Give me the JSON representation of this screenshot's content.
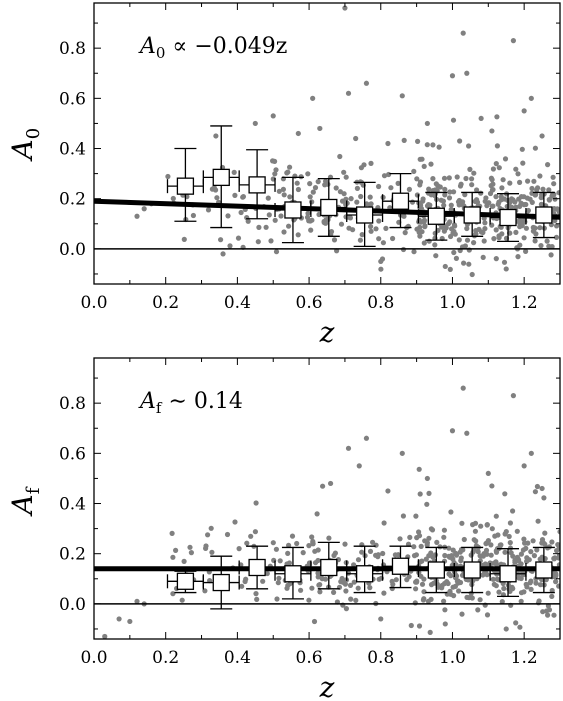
{
  "chart_data": [
    {
      "type": "scatter",
      "title": "",
      "xlabel": "z",
      "ylabel": "A",
      "ylabel_sub": "0",
      "annotation": {
        "var": "A",
        "sub": "0",
        "rest": " ∝ −0.049z"
      },
      "xlim": [
        0.0,
        1.3
      ],
      "ylim": [
        -0.14,
        0.98
      ],
      "xticks": [
        "0.0",
        "0.2",
        "0.4",
        "0.6",
        "0.8",
        "1.0",
        "1.2"
      ],
      "xtick_values": [
        0.0,
        0.2,
        0.4,
        0.6,
        0.8,
        1.0,
        1.2
      ],
      "yticks": [
        "0.0",
        "0.2",
        "0.4",
        "0.6",
        "0.8"
      ],
      "ytick_values": [
        0.0,
        0.2,
        0.4,
        0.6,
        0.8
      ],
      "fit_line": {
        "x": [
          0.0,
          1.3
        ],
        "y": [
          0.19,
          0.126
        ]
      },
      "zero_line": 0.0,
      "binned": [
        {
          "x": 0.255,
          "y": 0.25,
          "yerr_hi": 0.4,
          "yerr_lo": 0.11,
          "xerr": 0.05
        },
        {
          "x": 0.355,
          "y": 0.285,
          "yerr_hi": 0.49,
          "yerr_lo": 0.085,
          "xerr": 0.05
        },
        {
          "x": 0.455,
          "y": 0.255,
          "yerr_hi": 0.395,
          "yerr_lo": 0.12,
          "xerr": 0.05
        },
        {
          "x": 0.555,
          "y": 0.155,
          "yerr_hi": 0.285,
          "yerr_lo": 0.025,
          "xerr": 0.05
        },
        {
          "x": 0.655,
          "y": 0.165,
          "yerr_hi": 0.28,
          "yerr_lo": 0.05,
          "xerr": 0.05
        },
        {
          "x": 0.755,
          "y": 0.135,
          "yerr_hi": 0.265,
          "yerr_lo": 0.01,
          "xerr": 0.05
        },
        {
          "x": 0.855,
          "y": 0.19,
          "yerr_hi": 0.3,
          "yerr_lo": 0.085,
          "xerr": 0.05
        },
        {
          "x": 0.955,
          "y": 0.13,
          "yerr_hi": 0.225,
          "yerr_lo": 0.035,
          "xerr": 0.05
        },
        {
          "x": 1.055,
          "y": 0.135,
          "yerr_hi": 0.225,
          "yerr_lo": 0.05,
          "xerr": 0.05
        },
        {
          "x": 1.155,
          "y": 0.125,
          "yerr_hi": 0.22,
          "yerr_lo": 0.03,
          "xerr": 0.05
        },
        {
          "x": 1.255,
          "y": 0.135,
          "yerr_hi": 0.225,
          "yerr_lo": 0.045,
          "xerr": 0.05
        }
      ],
      "outliers": [
        {
          "x": 0.7,
          "y": 0.96
        },
        {
          "x": 1.03,
          "y": 0.86
        },
        {
          "x": 1.17,
          "y": 0.83
        },
        {
          "x": 1.0,
          "y": 0.69
        },
        {
          "x": 1.04,
          "y": 0.7
        },
        {
          "x": 0.76,
          "y": 0.66
        },
        {
          "x": 0.71,
          "y": 0.62
        },
        {
          "x": 0.61,
          "y": 0.6
        },
        {
          "x": 0.86,
          "y": 0.61
        },
        {
          "x": 1.22,
          "y": 0.6
        },
        {
          "x": 1.2,
          "y": 0.55
        },
        {
          "x": 1.08,
          "y": 0.52
        },
        {
          "x": 0.5,
          "y": 0.53
        },
        {
          "x": 0.45,
          "y": 0.5
        },
        {
          "x": 0.63,
          "y": 0.48
        },
        {
          "x": 0.93,
          "y": 0.5
        },
        {
          "x": 0.57,
          "y": 0.46
        },
        {
          "x": 1.11,
          "y": 0.47
        },
        {
          "x": 0.73,
          "y": 0.44
        },
        {
          "x": 1.25,
          "y": 0.45
        },
        {
          "x": 0.34,
          "y": 0.45
        },
        {
          "x": 0.82,
          "y": 0.42
        },
        {
          "x": 1.02,
          "y": 0.43
        },
        {
          "x": 0.12,
          "y": 0.13
        },
        {
          "x": 0.14,
          "y": 0.16
        },
        {
          "x": 0.16,
          "y": 0.18
        },
        {
          "x": 0.36,
          "y": -0.02
        },
        {
          "x": 0.98,
          "y": -0.07
        },
        {
          "x": 1.15,
          "y": -0.08
        },
        {
          "x": 0.8,
          "y": -0.05
        }
      ],
      "cloud_seed": 7,
      "cloud_count": 520
    },
    {
      "type": "scatter",
      "title": "",
      "xlabel": "z",
      "ylabel": "A",
      "ylabel_sub": "f",
      "annotation": {
        "var": "A",
        "sub": "f",
        "rest": " ∼ 0.14"
      },
      "xlim": [
        0.0,
        1.3
      ],
      "ylim": [
        -0.14,
        0.98
      ],
      "xticks": [
        "0.0",
        "0.2",
        "0.4",
        "0.6",
        "0.8",
        "1.0",
        "1.2"
      ],
      "xtick_values": [
        0.0,
        0.2,
        0.4,
        0.6,
        0.8,
        1.0,
        1.2
      ],
      "yticks": [
        "0.0",
        "0.2",
        "0.4",
        "0.6",
        "0.8"
      ],
      "ytick_values": [
        0.0,
        0.2,
        0.4,
        0.6,
        0.8
      ],
      "fit_line": {
        "x": [
          0.0,
          1.3
        ],
        "y": [
          0.14,
          0.14
        ]
      },
      "zero_line": 0.0,
      "binned": [
        {
          "x": 0.255,
          "y": 0.09,
          "yerr_hi": 0.13,
          "yerr_lo": 0.045,
          "xerr": 0.05
        },
        {
          "x": 0.355,
          "y": 0.085,
          "yerr_hi": 0.19,
          "yerr_lo": -0.02,
          "xerr": 0.05
        },
        {
          "x": 0.455,
          "y": 0.145,
          "yerr_hi": 0.23,
          "yerr_lo": 0.06,
          "xerr": 0.05
        },
        {
          "x": 0.555,
          "y": 0.12,
          "yerr_hi": 0.225,
          "yerr_lo": 0.02,
          "xerr": 0.05
        },
        {
          "x": 0.655,
          "y": 0.145,
          "yerr_hi": 0.245,
          "yerr_lo": 0.06,
          "xerr": 0.05
        },
        {
          "x": 0.755,
          "y": 0.12,
          "yerr_hi": 0.23,
          "yerr_lo": 0.045,
          "xerr": 0.05
        },
        {
          "x": 0.855,
          "y": 0.15,
          "yerr_hi": 0.23,
          "yerr_lo": 0.065,
          "xerr": 0.05
        },
        {
          "x": 0.955,
          "y": 0.135,
          "yerr_hi": 0.225,
          "yerr_lo": 0.045,
          "xerr": 0.05
        },
        {
          "x": 1.055,
          "y": 0.135,
          "yerr_hi": 0.225,
          "yerr_lo": 0.045,
          "xerr": 0.05
        },
        {
          "x": 1.155,
          "y": 0.12,
          "yerr_hi": 0.22,
          "yerr_lo": 0.03,
          "xerr": 0.05
        },
        {
          "x": 1.255,
          "y": 0.135,
          "yerr_hi": 0.225,
          "yerr_lo": 0.045,
          "xerr": 0.05
        }
      ],
      "outliers": [
        {
          "x": 1.03,
          "y": 0.86
        },
        {
          "x": 1.17,
          "y": 0.83
        },
        {
          "x": 1.0,
          "y": 0.69
        },
        {
          "x": 1.04,
          "y": 0.68
        },
        {
          "x": 0.76,
          "y": 0.66
        },
        {
          "x": 0.71,
          "y": 0.62
        },
        {
          "x": 0.86,
          "y": 0.6
        },
        {
          "x": 1.22,
          "y": 0.6
        },
        {
          "x": 0.74,
          "y": 0.55
        },
        {
          "x": 1.2,
          "y": 0.55
        },
        {
          "x": 1.1,
          "y": 0.52
        },
        {
          "x": 0.93,
          "y": 0.5
        },
        {
          "x": 0.66,
          "y": 0.48
        },
        {
          "x": 1.11,
          "y": 0.47
        },
        {
          "x": 1.25,
          "y": 0.46
        },
        {
          "x": 0.82,
          "y": 0.45
        },
        {
          "x": 0.03,
          "y": -0.13
        },
        {
          "x": 0.07,
          "y": -0.06
        },
        {
          "x": 0.1,
          "y": -0.07
        },
        {
          "x": 0.14,
          "y": 0.0
        },
        {
          "x": 0.12,
          "y": 0.01
        },
        {
          "x": 0.98,
          "y": -0.08
        },
        {
          "x": 1.15,
          "y": -0.1
        },
        {
          "x": 0.8,
          "y": -0.06
        }
      ],
      "cloud_seed": 11,
      "cloud_count": 520
    }
  ],
  "colors": {
    "scatter": "#808080",
    "line": "#000000",
    "marker_fill": "#ffffff",
    "axes": "#000000"
  }
}
